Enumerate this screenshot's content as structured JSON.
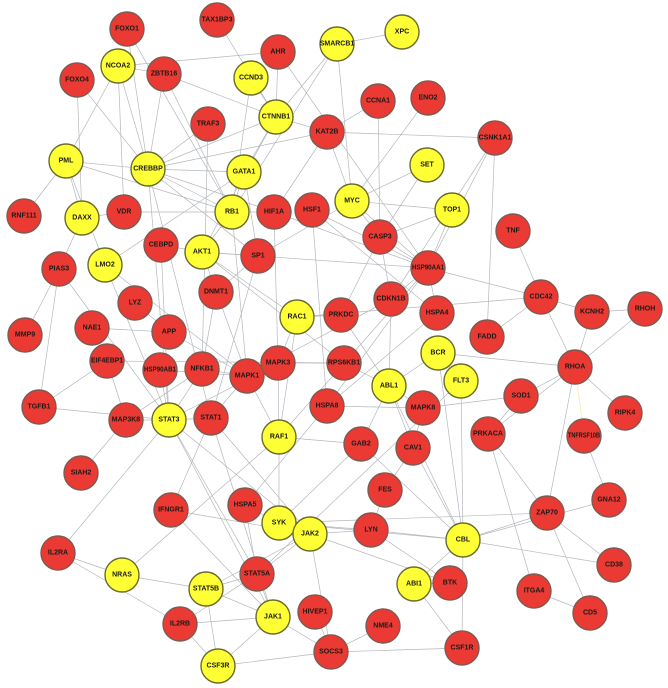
{
  "colors": {
    "red": "#ea3a33",
    "yellow": "#ffff36",
    "red_border": "#7d5a52",
    "yellow_border": "#6a6a2a",
    "edge": "#b4b8bd"
  },
  "nodes": [
    {
      "label": "FOXO1",
      "group": "red"
    },
    {
      "label": "TAX1BP3",
      "group": "red"
    },
    {
      "label": "AHR",
      "group": "red"
    },
    {
      "label": "SMARCB1",
      "group": "yellow"
    },
    {
      "label": "XPC",
      "group": "yellow"
    },
    {
      "label": "NCOA2",
      "group": "yellow"
    },
    {
      "label": "ZBTB16",
      "group": "red"
    },
    {
      "label": "FOXO4",
      "group": "red"
    },
    {
      "label": "CCND3",
      "group": "yellow"
    },
    {
      "label": "CCNA1",
      "group": "red"
    },
    {
      "label": "ENO2",
      "group": "red"
    },
    {
      "label": "TRAF3",
      "group": "red"
    },
    {
      "label": "CTNNB1",
      "group": "yellow"
    },
    {
      "label": "KAT2B",
      "group": "red"
    },
    {
      "label": "CSNK1A1",
      "group": "red"
    },
    {
      "label": "PML",
      "group": "yellow"
    },
    {
      "label": "CREBBP",
      "group": "yellow"
    },
    {
      "label": "GATA1",
      "group": "yellow"
    },
    {
      "label": "SET",
      "group": "yellow"
    },
    {
      "label": "MYC",
      "group": "yellow"
    },
    {
      "label": "TOP1",
      "group": "yellow"
    },
    {
      "label": "RNF111",
      "group": "red"
    },
    {
      "label": "DAXX",
      "group": "yellow"
    },
    {
      "label": "VDR",
      "group": "red"
    },
    {
      "label": "RB1",
      "group": "yellow"
    },
    {
      "label": "HIF1A",
      "group": "red"
    },
    {
      "label": "HSF1",
      "group": "red"
    },
    {
      "label": "CEBPD",
      "group": "red"
    },
    {
      "label": "AKT1",
      "group": "yellow"
    },
    {
      "label": "SP1",
      "group": "red"
    },
    {
      "label": "CASP3",
      "group": "red"
    },
    {
      "label": "TNF",
      "group": "red"
    },
    {
      "label": "PIAS3",
      "group": "red"
    },
    {
      "label": "LMO2",
      "group": "yellow"
    },
    {
      "label": "HSP90AA1",
      "group": "red"
    },
    {
      "label": "DNMT1",
      "group": "red"
    },
    {
      "label": "LYZ",
      "group": "red"
    },
    {
      "label": "CDKN1B",
      "group": "red"
    },
    {
      "label": "RAC1",
      "group": "yellow"
    },
    {
      "label": "PRKDC",
      "group": "red"
    },
    {
      "label": "HSPA4",
      "group": "red"
    },
    {
      "label": "CDC42",
      "group": "red"
    },
    {
      "label": "KCNH2",
      "group": "red"
    },
    {
      "label": "RHOH",
      "group": "red"
    },
    {
      "label": "MMP9",
      "group": "red"
    },
    {
      "label": "NAE1",
      "group": "red"
    },
    {
      "label": "APP",
      "group": "red"
    },
    {
      "label": "FADD",
      "group": "red"
    },
    {
      "label": "EIF4EBP1",
      "group": "red"
    },
    {
      "label": "HSP90AB1",
      "group": "red"
    },
    {
      "label": "NFKB1",
      "group": "red"
    },
    {
      "label": "MAPK1",
      "group": "red"
    },
    {
      "label": "MAPK3",
      "group": "red"
    },
    {
      "label": "RPS6KB1",
      "group": "red"
    },
    {
      "label": "BCR",
      "group": "yellow"
    },
    {
      "label": "RHOA",
      "group": "red"
    },
    {
      "label": "ABL1",
      "group": "yellow"
    },
    {
      "label": "FLT3",
      "group": "yellow"
    },
    {
      "label": "TGFB1",
      "group": "red"
    },
    {
      "label": "MAP3K8",
      "group": "red"
    },
    {
      "label": "STAT3",
      "group": "yellow"
    },
    {
      "label": "STAT1",
      "group": "red"
    },
    {
      "label": "HSPA8",
      "group": "red"
    },
    {
      "label": "MAPK8",
      "group": "red"
    },
    {
      "label": "SOD1",
      "group": "red"
    },
    {
      "label": "RIPK4",
      "group": "red"
    },
    {
      "label": "RAF1",
      "group": "yellow"
    },
    {
      "label": "GAB2",
      "group": "red"
    },
    {
      "label": "CAV1",
      "group": "red"
    },
    {
      "label": "PRKACA",
      "group": "red"
    },
    {
      "label": "TNFRSF10B",
      "group": "red"
    },
    {
      "label": "SIAH2",
      "group": "red"
    },
    {
      "label": "FES",
      "group": "red"
    },
    {
      "label": "GNA12",
      "group": "red"
    },
    {
      "label": "IFNGR1",
      "group": "red"
    },
    {
      "label": "HSPA5",
      "group": "red"
    },
    {
      "label": "SYK",
      "group": "yellow"
    },
    {
      "label": "JAK2",
      "group": "yellow"
    },
    {
      "label": "LYN",
      "group": "red"
    },
    {
      "label": "CBL",
      "group": "yellow"
    },
    {
      "label": "ZAP70",
      "group": "red"
    },
    {
      "label": "IL2RA",
      "group": "red"
    },
    {
      "label": "CD38",
      "group": "red"
    },
    {
      "label": "NRAS",
      "group": "yellow"
    },
    {
      "label": "STAT5A",
      "group": "red"
    },
    {
      "label": "STAT5B",
      "group": "yellow"
    },
    {
      "label": "ABI1",
      "group": "yellow"
    },
    {
      "label": "BTK",
      "group": "red"
    },
    {
      "label": "ITGA4",
      "group": "red"
    },
    {
      "label": "CD5",
      "group": "red"
    },
    {
      "label": "IL2RB",
      "group": "red"
    },
    {
      "label": "JAK1",
      "group": "yellow"
    },
    {
      "label": "HIVEP1",
      "group": "red"
    },
    {
      "label": "NME4",
      "group": "red"
    },
    {
      "label": "SOCS3",
      "group": "red"
    },
    {
      "label": "CSF1R",
      "group": "red"
    },
    {
      "label": "CSF3R",
      "group": "yellow"
    }
  ],
  "edges": [
    [
      "SMARCB1",
      "XPC"
    ],
    [
      "SMARCB1",
      "MYC"
    ],
    [
      "SMARCB1",
      "CTNNB1"
    ],
    [
      "SMARCB1",
      "RB1"
    ],
    [
      "FOXO1",
      "CREBBP"
    ],
    [
      "FOXO1",
      "RB1"
    ],
    [
      "TAX1BP3",
      "CTNNB1"
    ],
    [
      "AHR",
      "CTNNB1"
    ],
    [
      "AHR",
      "NCOA2"
    ],
    [
      "AHR",
      "HSP90AA1"
    ],
    [
      "NCOA2",
      "CREBBP"
    ],
    [
      "NCOA2",
      "PML"
    ],
    [
      "NCOA2",
      "ZBTB16"
    ],
    [
      "NCOA2",
      "VDR"
    ],
    [
      "ZBTB16",
      "CREBBP"
    ],
    [
      "ZBTB16",
      "CTNNB1"
    ],
    [
      "ZBTB16",
      "RB1"
    ],
    [
      "FOXO4",
      "CREBBP"
    ],
    [
      "FOXO4",
      "DAXX"
    ],
    [
      "CCND3",
      "CTNNB1"
    ],
    [
      "CCND3",
      "RB1"
    ],
    [
      "CCNA1",
      "KAT2B"
    ],
    [
      "CCNA1",
      "CASP3"
    ],
    [
      "ENO2",
      "MYC"
    ],
    [
      "TRAF3",
      "CREBBP"
    ],
    [
      "TRAF3",
      "NFKB1"
    ],
    [
      "CTNNB1",
      "KAT2B"
    ],
    [
      "CTNNB1",
      "GATA1"
    ],
    [
      "CTNNB1",
      "CREBBP"
    ],
    [
      "CTNNB1",
      "AKT1"
    ],
    [
      "KAT2B",
      "CSNK1A1"
    ],
    [
      "KAT2B",
      "MYC"
    ],
    [
      "KAT2B",
      "CREBBP"
    ],
    [
      "KAT2B",
      "HIF1A"
    ],
    [
      "CSNK1A1",
      "CDKN1B"
    ],
    [
      "CSNK1A1",
      "HSP90AA1"
    ],
    [
      "CSNK1A1",
      "FADD"
    ],
    [
      "PML",
      "CREBBP"
    ],
    [
      "PML",
      "DAXX"
    ],
    [
      "PML",
      "RNF111"
    ],
    [
      "PML",
      "RB1"
    ],
    [
      "PML",
      "LMO2"
    ],
    [
      "CREBBP",
      "GATA1"
    ],
    [
      "CREBBP",
      "RB1"
    ],
    [
      "CREBBP",
      "STAT3"
    ],
    [
      "CREBBP",
      "SP1"
    ],
    [
      "CREBBP",
      "HIF1A"
    ],
    [
      "CREBBP",
      "STAT1"
    ],
    [
      "GATA1",
      "RB1"
    ],
    [
      "GATA1",
      "SP1"
    ],
    [
      "GATA1",
      "LMO2"
    ],
    [
      "SET",
      "MYC"
    ],
    [
      "SET",
      "CASP3"
    ],
    [
      "MYC",
      "TOP1"
    ],
    [
      "MYC",
      "CASP3"
    ],
    [
      "MYC",
      "SP1"
    ],
    [
      "MYC",
      "HSP90AA1"
    ],
    [
      "TOP1",
      "HSP90AA1"
    ],
    [
      "TOP1",
      "CASP3"
    ],
    [
      "DAXX",
      "VDR"
    ],
    [
      "DAXX",
      "PIAS3"
    ],
    [
      "VDR",
      "RB1"
    ],
    [
      "RB1",
      "HIF1A"
    ],
    [
      "RB1",
      "AKT1"
    ],
    [
      "RB1",
      "MAPK1"
    ],
    [
      "HIF1A",
      "HSP90AA1"
    ],
    [
      "HIF1A",
      "MAPK3"
    ],
    [
      "HSF1",
      "HSP90AA1"
    ],
    [
      "HSF1",
      "HSPA4"
    ],
    [
      "HSF1",
      "HSPA8"
    ],
    [
      "CEBPD",
      "STAT3"
    ],
    [
      "CEBPD",
      "AKT1"
    ],
    [
      "AKT1",
      "SP1"
    ],
    [
      "AKT1",
      "HSP90AA1"
    ],
    [
      "AKT1",
      "RAC1"
    ],
    [
      "AKT1",
      "MAPK1"
    ],
    [
      "AKT1",
      "RPS6KB1"
    ],
    [
      "SP1",
      "DNMT1"
    ],
    [
      "SP1",
      "STAT1"
    ],
    [
      "CASP3",
      "HSP90AA1"
    ],
    [
      "CASP3",
      "CDKN1B"
    ],
    [
      "CASP3",
      "PRKDC"
    ],
    [
      "TNF",
      "CDC42"
    ],
    [
      "PIAS3",
      "STAT3"
    ],
    [
      "PIAS3",
      "TGFB1"
    ],
    [
      "PIAS3",
      "MMP9"
    ],
    [
      "LMO2",
      "STAT3"
    ],
    [
      "LMO2",
      "MAPK1"
    ],
    [
      "HSP90AA1",
      "CDC42"
    ],
    [
      "HSP90AA1",
      "HSPA4"
    ],
    [
      "HSP90AA1",
      "CDKN1B"
    ],
    [
      "HSP90AA1",
      "RAF1"
    ],
    [
      "HSP90AA1",
      "HSPA8"
    ],
    [
      "DNMT1",
      "NFKB1"
    ],
    [
      "LYZ",
      "APP"
    ],
    [
      "CDKN1B",
      "MAPK1"
    ],
    [
      "CDKN1B",
      "ABL1"
    ],
    [
      "RAC1",
      "PRKDC"
    ],
    [
      "RAC1",
      "MAPK3"
    ],
    [
      "RAC1",
      "CDC42"
    ],
    [
      "RAC1",
      "RAF1"
    ],
    [
      "PRKDC",
      "ABL1"
    ],
    [
      "HSPA4",
      "HSPA8"
    ],
    [
      "CDC42",
      "KCNH2"
    ],
    [
      "CDC42",
      "RHOA"
    ],
    [
      "CDC42",
      "FADD"
    ],
    [
      "KCNH2",
      "RHOH"
    ],
    [
      "KCNH2",
      "RHOA"
    ],
    [
      "RHOH",
      "RHOA"
    ],
    [
      "NAE1",
      "APP"
    ],
    [
      "APP",
      "MAPK1"
    ],
    [
      "EIF4EBP1",
      "RPS6KB1"
    ],
    [
      "EIF4EBP1",
      "TGFB1"
    ],
    [
      "EIF4EBP1",
      "MAP3K8"
    ],
    [
      "HSP90AB1",
      "MAPK1"
    ],
    [
      "HSP90AB1",
      "STAT3"
    ],
    [
      "NFKB1",
      "MAPK1"
    ],
    [
      "NFKB1",
      "STAT3"
    ],
    [
      "NFKB1",
      "MAP3K8"
    ],
    [
      "MAPK1",
      "MAPK3"
    ],
    [
      "MAPK1",
      "RAF1"
    ],
    [
      "MAPK1",
      "STAT1"
    ],
    [
      "MAPK3",
      "RPS6KB1"
    ],
    [
      "MAPK3",
      "STAT3"
    ],
    [
      "MAPK3",
      "RAF1"
    ],
    [
      "RPS6KB1",
      "ABL1"
    ],
    [
      "BCR",
      "ABL1"
    ],
    [
      "BCR",
      "FLT3"
    ],
    [
      "BCR",
      "CBL"
    ],
    [
      "BCR",
      "RHOA"
    ],
    [
      "ABL1",
      "CBL"
    ],
    [
      "ABL1",
      "MAPK8"
    ],
    [
      "ABL1",
      "CAV1"
    ],
    [
      "ABL1",
      "GAB2"
    ],
    [
      "FLT3",
      "CBL"
    ],
    [
      "FLT3",
      "STAT5A"
    ],
    [
      "RHOA",
      "TNFRSF10B"
    ],
    [
      "RHOA",
      "RIPK4"
    ],
    [
      "RHOA",
      "SOD1"
    ],
    [
      "RHOA",
      "PRKACA"
    ],
    [
      "RHOA",
      "ZAP70"
    ],
    [
      "TGFB1",
      "STAT3"
    ],
    [
      "MAP3K8",
      "STAT3"
    ],
    [
      "MAP3K8",
      "SIAH2"
    ],
    [
      "STAT3",
      "STAT1"
    ],
    [
      "STAT3",
      "JAK2"
    ],
    [
      "STAT3",
      "JAK1"
    ],
    [
      "STAT3",
      "STAT5A"
    ],
    [
      "STAT3",
      "IL2RA"
    ],
    [
      "STAT1",
      "JAK1"
    ],
    [
      "STAT1",
      "JAK2"
    ],
    [
      "STAT1",
      "IFNGR1"
    ],
    [
      "HSPA8",
      "HSPA5"
    ],
    [
      "HSPA8",
      "MAPK8"
    ],
    [
      "MAPK8",
      "CAV1"
    ],
    [
      "MAPK8",
      "SOD1"
    ],
    [
      "SOD1",
      "PRKACA"
    ],
    [
      "RAF1",
      "SYK"
    ],
    [
      "RAF1",
      "GAB2"
    ],
    [
      "GAB2",
      "SYK"
    ],
    [
      "GAB2",
      "CBL"
    ],
    [
      "CAV1",
      "FES"
    ],
    [
      "CAV1",
      "CBL"
    ],
    [
      "PRKACA",
      "ZAP70"
    ],
    [
      "PRKACA",
      "ITGA4"
    ],
    [
      "TNFRSF10B",
      "GNA12"
    ],
    [
      "FES",
      "LYN"
    ],
    [
      "GNA12",
      "CBL"
    ],
    [
      "IFNGR1",
      "JAK2"
    ],
    [
      "IFNGR1",
      "JAK1"
    ],
    [
      "HSPA5",
      "SYK"
    ],
    [
      "SYK",
      "JAK2"
    ],
    [
      "SYK",
      "LYN"
    ],
    [
      "SYK",
      "CBL"
    ],
    [
      "SYK",
      "BTK"
    ],
    [
      "SYK",
      "ZAP70"
    ],
    [
      "JAK2",
      "STAT5A"
    ],
    [
      "JAK2",
      "STAT5B"
    ],
    [
      "JAK2",
      "SOCS3"
    ],
    [
      "LYN",
      "CBL"
    ],
    [
      "LYN",
      "BTK"
    ],
    [
      "CBL",
      "ZAP70"
    ],
    [
      "CBL",
      "CD38"
    ],
    [
      "CBL",
      "ABI1"
    ],
    [
      "CBL",
      "CSF1R"
    ],
    [
      "ZAP70",
      "CD5"
    ],
    [
      "ZAP70",
      "CD38"
    ],
    [
      "IL2RA",
      "NRAS"
    ],
    [
      "IL2RA",
      "IL2RB"
    ],
    [
      "NRAS",
      "STAT5B"
    ],
    [
      "NRAS",
      "RAF1"
    ],
    [
      "STAT5A",
      "STAT5B"
    ],
    [
      "STAT5A",
      "JAK1"
    ],
    [
      "STAT5A",
      "IL2RB"
    ],
    [
      "STAT5B",
      "JAK1"
    ],
    [
      "STAT5B",
      "CSF3R"
    ],
    [
      "ABI1",
      "BTK"
    ],
    [
      "ABI1",
      "CSF1R"
    ],
    [
      "ITGA4",
      "CD5"
    ],
    [
      "IL2RB",
      "JAK1"
    ],
    [
      "JAK1",
      "SOCS3"
    ],
    [
      "JAK1",
      "CSF3R"
    ],
    [
      "HIVEP1",
      "SOCS3"
    ],
    [
      "NME4",
      "SOCS3"
    ],
    [
      "SOCS3",
      "CSF1R"
    ],
    [
      "SOCS3",
      "CSF3R"
    ],
    [
      "IL2RB",
      "CSF3R"
    ],
    [
      "HSPA5",
      "STAT5A"
    ],
    [
      "LYN",
      "JAK2"
    ]
  ]
}
